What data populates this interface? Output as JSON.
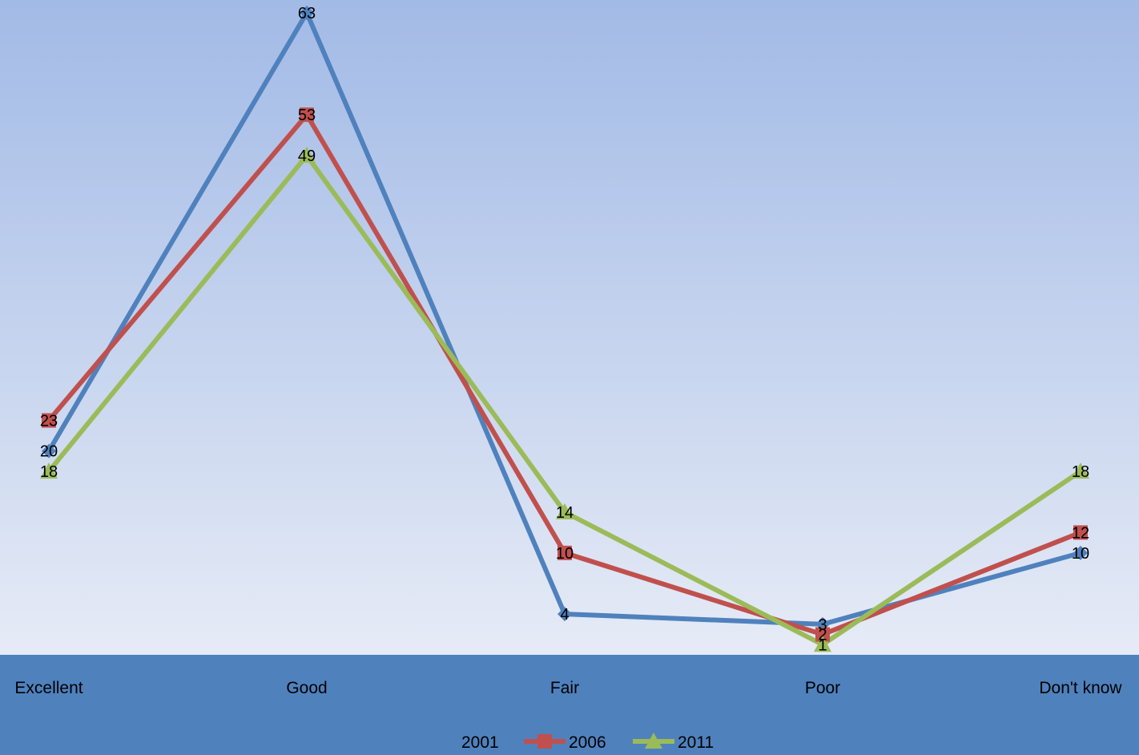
{
  "chart_data": {
    "type": "line",
    "title": "",
    "xlabel": "",
    "ylabel": "",
    "categories": [
      "Excellent",
      "Good",
      "Fair",
      "Poor",
      "Don't know"
    ],
    "ylim": [
      0,
      63
    ],
    "grid": false,
    "legend_position": "bottom",
    "series": [
      {
        "name": "2001",
        "values": [
          20,
          63,
          4,
          3,
          10
        ],
        "color": "#4F81BD",
        "marker": "diamond"
      },
      {
        "name": "2006",
        "values": [
          23,
          53,
          10,
          2,
          12
        ],
        "color": "#C0504D",
        "marker": "square"
      },
      {
        "name": "2011",
        "values": [
          18,
          49,
          14,
          1,
          18
        ],
        "color": "#9BBB59",
        "marker": "triangle"
      }
    ]
  },
  "colors": {
    "plot_gradient_top": "#A2BAE6",
    "plot_gradient_bottom": "#E6EBF6",
    "axis_band": "#4F81BD"
  }
}
